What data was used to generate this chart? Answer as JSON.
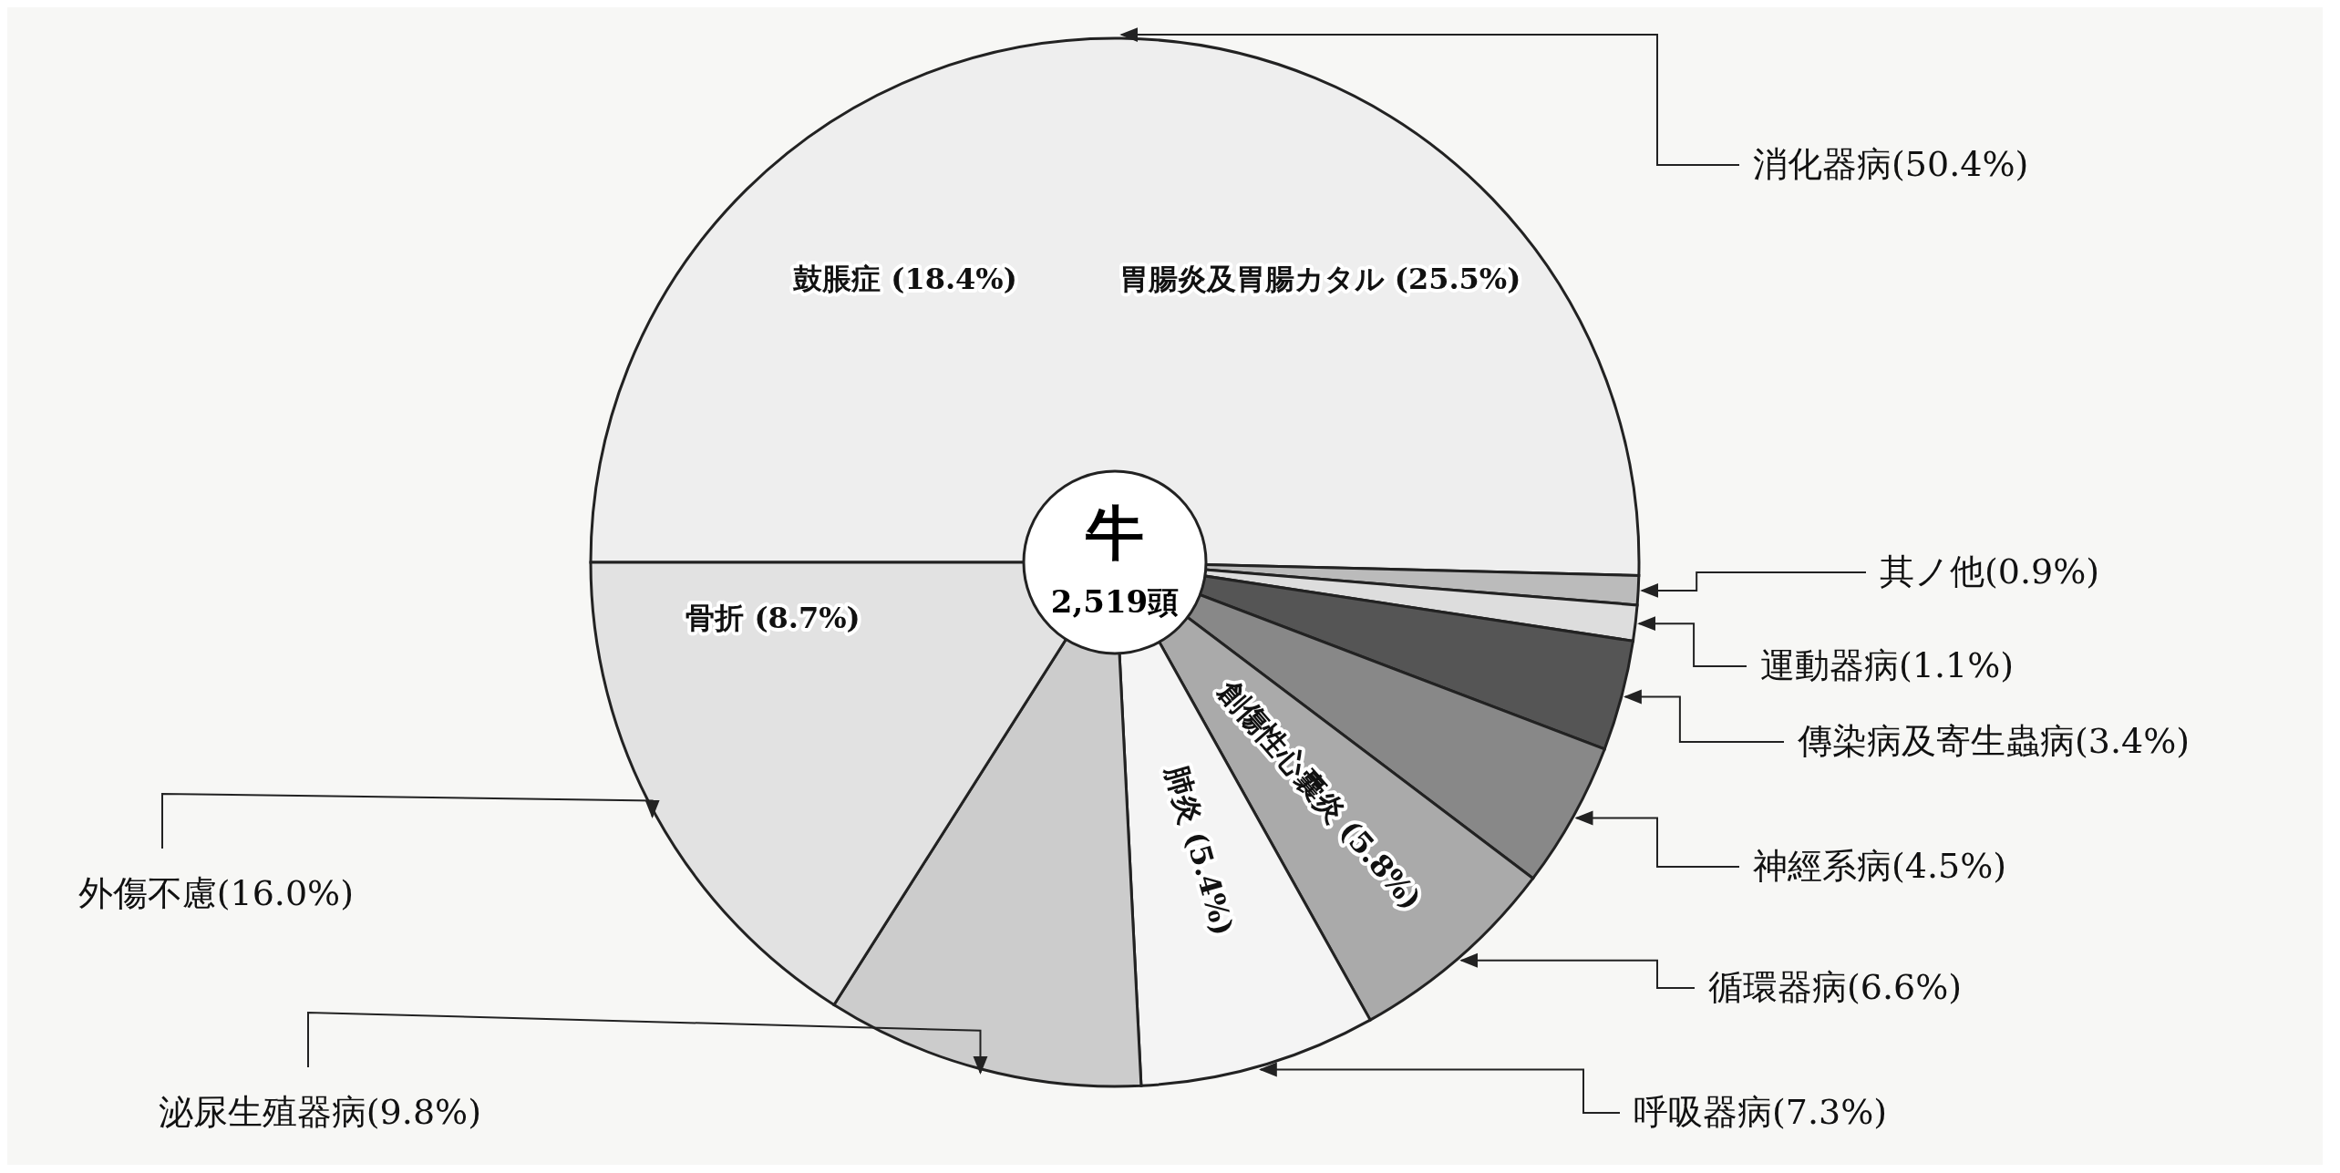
{
  "chart_data": {
    "type": "pie",
    "title": "牛",
    "subtitle": "2,519頭",
    "categories": [
      "消化器病",
      "其ノ他",
      "運動器病",
      "傳染病及寄生蟲病",
      "神經系病",
      "循環器病",
      "呼吸器病",
      "泌尿生殖器病",
      "外傷不慮"
    ],
    "values": [
      50.4,
      0.9,
      1.1,
      3.4,
      4.5,
      6.6,
      7.3,
      9.8,
      16.0
    ],
    "colors": [
      "#eeeeee",
      "#bbbbbb",
      "#dddddd",
      "#555555",
      "#888888",
      "#aaaaaa",
      "#f4f4f4",
      "#cccccc",
      "#e2e2e2"
    ],
    "value_labels": [
      "(50.4%)",
      "(0.9%)",
      "(1.1%)",
      "(3.4%)",
      "(4.5%)",
      "(6.6%)",
      "(7.3%)",
      "(9.8%)",
      "(16.0%)"
    ],
    "annotations": [
      "胃腸炎及胃腸カタル (25.5%)",
      "鼓脹症 (18.4%)",
      "骨折 (8.7%)",
      "肺炎 (5.4%)",
      "創傷性心囊炎 (5.8%)"
    ],
    "legend": false
  }
}
